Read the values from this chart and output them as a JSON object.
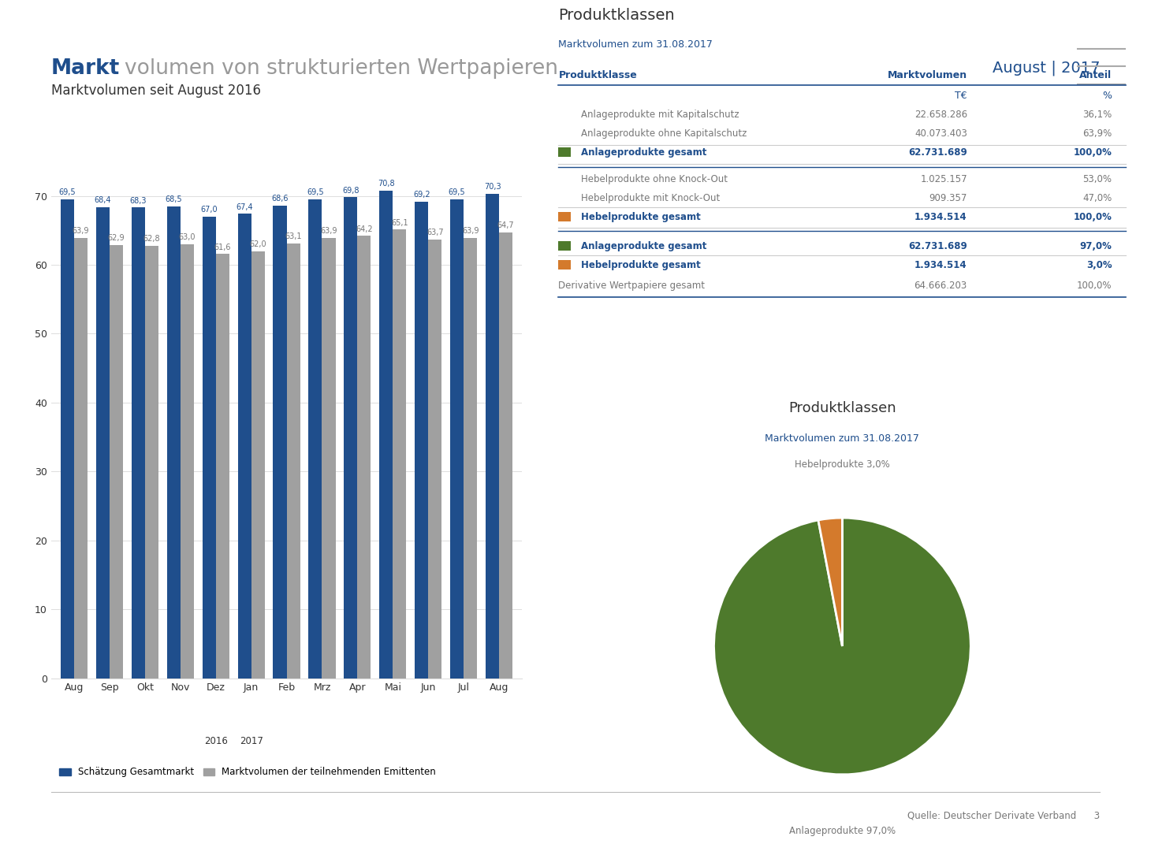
{
  "header_bold": "Markt",
  "header_regular": "volumen von strukturierten Wertpapieren",
  "header_date": "August | 2017",
  "header_bold_color": "#1F4E8C",
  "header_regular_color": "#999999",
  "header_date_color": "#1F4E8C",
  "bar_chart_title": "Marktvolumen seit August 2016",
  "bar_categories": [
    "Aug",
    "Sep",
    "Okt",
    "Nov",
    "Dez",
    "Jan",
    "Feb",
    "Mrz",
    "Apr",
    "Mai",
    "Jun",
    "Jul",
    "Aug"
  ],
  "bar_blue_values": [
    69.5,
    68.4,
    68.3,
    68.5,
    67.0,
    67.4,
    68.6,
    69.5,
    69.8,
    70.8,
    69.2,
    69.5,
    70.3
  ],
  "bar_gray_values": [
    63.9,
    62.9,
    62.8,
    63.0,
    61.6,
    62.0,
    63.1,
    63.9,
    64.2,
    65.1,
    63.7,
    63.9,
    64.7
  ],
  "bar_blue_color": "#1F4E8C",
  "bar_gray_color": "#A0A0A0",
  "bar_yticks": [
    0,
    10,
    20,
    30,
    40,
    50,
    60,
    70
  ],
  "legend_blue": "Schätzung Gesamtmarkt",
  "legend_gray": "Marktvolumen der teilnehmenden Emittenten",
  "table_title": "Produktklassen",
  "table_subtitle": "Marktvolumen zum 31.08.2017",
  "table_col1_header": "Produktklasse",
  "table_col2_header": "Marktvolumen",
  "table_col3_header": "Anteil",
  "table_col2_subheader": "T€",
  "table_col3_subheader": "%",
  "table_rows": [
    {
      "name": "Anlageprodukte mit Kapitalschutz",
      "value": "22.658.286",
      "pct": "36,1%",
      "bold": false,
      "indent": true,
      "square_color": null
    },
    {
      "name": "Anlageprodukte ohne Kapitalschutz",
      "value": "40.073.403",
      "pct": "63,9%",
      "bold": false,
      "indent": true,
      "square_color": null
    },
    {
      "name": "Anlageprodukte gesamt",
      "value": "62.731.689",
      "pct": "100,0%",
      "bold": true,
      "indent": false,
      "square_color": "#4E7A2C"
    },
    {
      "name": "Hebelprodukte ohne Knock-Out",
      "value": "1.025.157",
      "pct": "53,0%",
      "bold": false,
      "indent": true,
      "square_color": null
    },
    {
      "name": "Hebelprodukte mit Knock-Out",
      "value": "909.357",
      "pct": "47,0%",
      "bold": false,
      "indent": true,
      "square_color": null
    },
    {
      "name": "Hebelprodukte gesamt",
      "value": "1.934.514",
      "pct": "100,0%",
      "bold": true,
      "indent": false,
      "square_color": "#D47A2C"
    },
    {
      "name": "Anlageprodukte gesamt",
      "value": "62.731.689",
      "pct": "97,0%",
      "bold": true,
      "indent": false,
      "square_color": "#4E7A2C"
    },
    {
      "name": "Hebelprodukte gesamt",
      "value": "1.934.514",
      "pct": "3,0%",
      "bold": true,
      "indent": false,
      "square_color": "#D47A2C"
    },
    {
      "name": "Derivative Wertpapiere gesamt",
      "value": "64.666.203",
      "pct": "100,0%",
      "bold": false,
      "indent": false,
      "square_color": null
    }
  ],
  "pie_title": "Produktklassen",
  "pie_subtitle": "Marktvolumen zum 31.08.2017",
  "pie_values": [
    97.0,
    3.0
  ],
  "pie_colors": [
    "#4E7A2C",
    "#D47A2C"
  ],
  "pie_labels": [
    "Anlageprodukte 97,0%",
    "Hebelprodukte 3,0%"
  ],
  "footer_text": "Quelle: Deutscher Derivate Verband",
  "footer_page": "3",
  "bg_color": "#FFFFFF",
  "text_color_blue": "#1F4E8C",
  "text_color_dark": "#333333",
  "text_color_gray": "#777777",
  "separator_color": "#CCCCCC",
  "grid_color": "#DDDDDD"
}
